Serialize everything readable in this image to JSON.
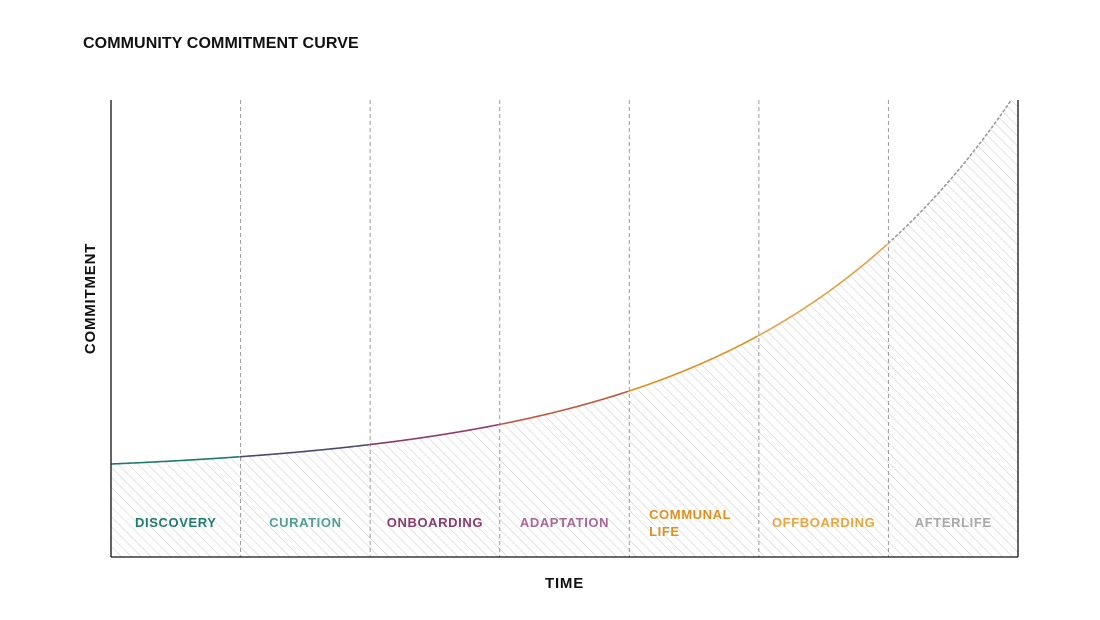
{
  "chart_data": {
    "type": "area",
    "title": "COMMUNITY COMMITMENT CURVE",
    "xlabel": "TIME",
    "ylabel": "COMMITMENT",
    "stages": [
      {
        "label": "DISCOVERY",
        "color": "#1f7a70"
      },
      {
        "label": "CURATION",
        "color": "#4f9e97"
      },
      {
        "label": "ONBOARDING",
        "color": "#8a3a6e"
      },
      {
        "label": "ADAPTATION",
        "color": "#a9669a"
      },
      {
        "label": "COMMUNAL LIFE",
        "color": "#e08f1f"
      },
      {
        "label": "OFFBOARDING",
        "color": "#e9a640"
      },
      {
        "label": "AFTERLIFE",
        "color": "#a9a9a9"
      }
    ],
    "curve_colors": [
      "#1f7a70",
      "#4a4a6e",
      "#8a3a6e",
      "#c0563f",
      "#e08f1f",
      "#e3a04a",
      "#9a9a9a"
    ],
    "extrapolated_segment": "dotted line beyond the AFTERLIFE boundary",
    "stage_dividers": "dashed vertical lines",
    "area_fill": "diagonal hatching under the curve",
    "grid": false,
    "legend": "none"
  }
}
